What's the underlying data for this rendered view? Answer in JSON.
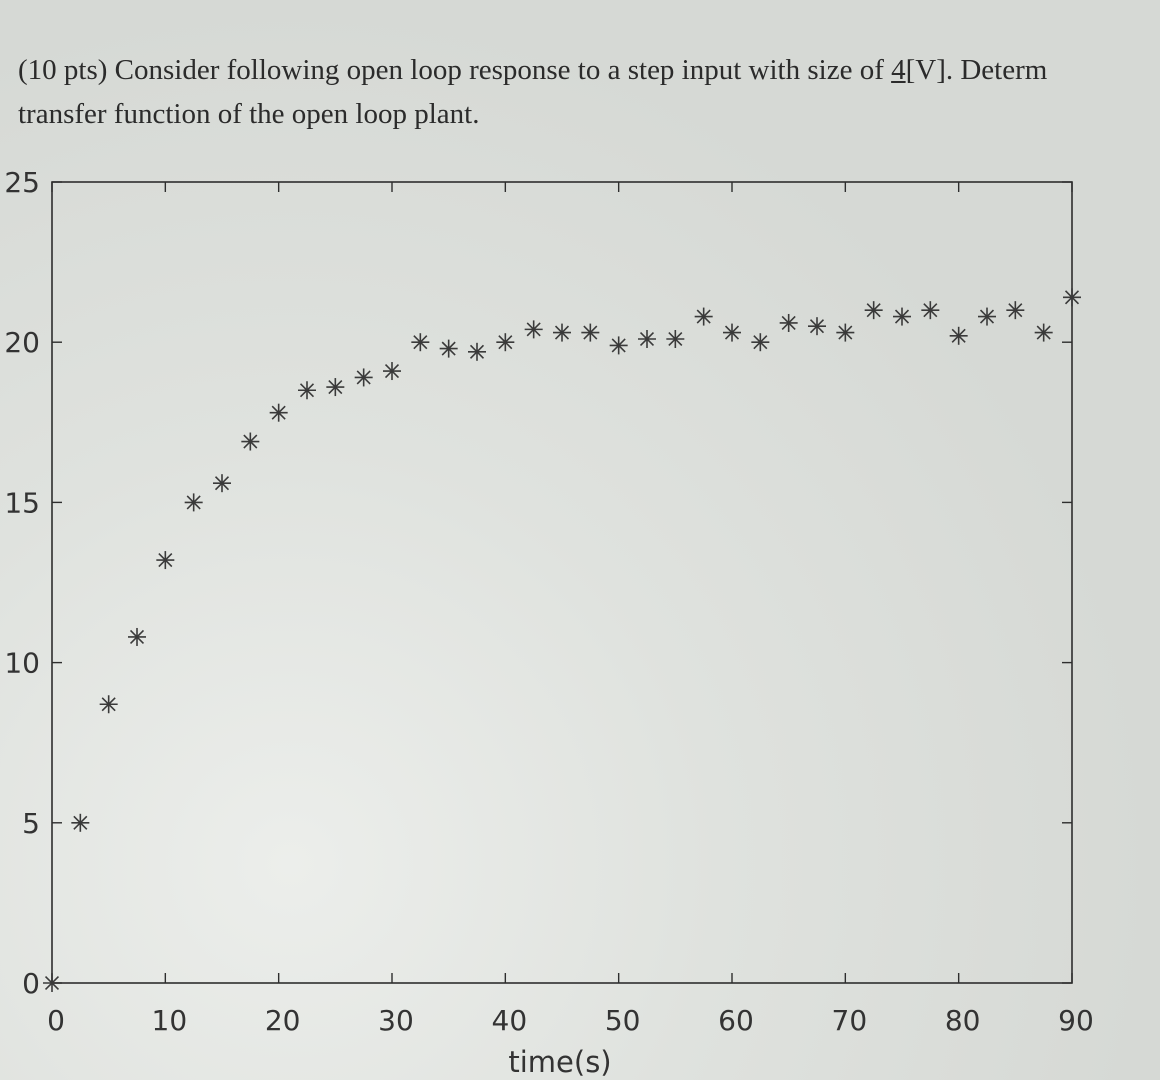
{
  "question": {
    "line1_prefix": "(10 pts) Consider following open loop response to a step input with size of ",
    "line1_value": "4",
    "line1_suffix": "[V]. Determ",
    "line2": "transfer function of the open loop plant."
  },
  "colors": {
    "ink": "#333333",
    "marker": "#3a3a3a",
    "axes": "#2e2e2e"
  },
  "chart_data": {
    "type": "scatter",
    "marker": "asterisk",
    "title": "",
    "xlabel": "time(s)",
    "ylabel": "",
    "xlim": [
      0,
      90
    ],
    "ylim": [
      0,
      25
    ],
    "xticks": [
      0,
      10,
      20,
      30,
      40,
      50,
      60,
      70,
      80,
      90
    ],
    "yticks": [
      0,
      5,
      10,
      15,
      20,
      25
    ],
    "grid": false,
    "series": [
      {
        "x": [
          0,
          2.5,
          5,
          7.5,
          10,
          12.5,
          15,
          17.5,
          20,
          22.5,
          25,
          27.5,
          30,
          32.5,
          35,
          37.5,
          40,
          42.5,
          45,
          47.5,
          50,
          52.5,
          55,
          57.5,
          60,
          62.5,
          65,
          67.5,
          70,
          72.5,
          75,
          77.5,
          80,
          82.5,
          85,
          87.5,
          90
        ],
        "y": [
          0.0,
          5.0,
          8.7,
          10.8,
          13.2,
          15.0,
          15.6,
          16.9,
          17.8,
          18.5,
          18.6,
          18.9,
          19.1,
          20.0,
          19.8,
          19.7,
          20.0,
          20.4,
          20.3,
          20.3,
          19.9,
          20.1,
          20.1,
          20.8,
          20.3,
          20.0,
          20.6,
          20.5,
          20.3,
          21.0,
          20.8,
          21.0,
          20.2,
          20.8,
          21.0,
          20.3,
          21.4
        ]
      }
    ]
  }
}
